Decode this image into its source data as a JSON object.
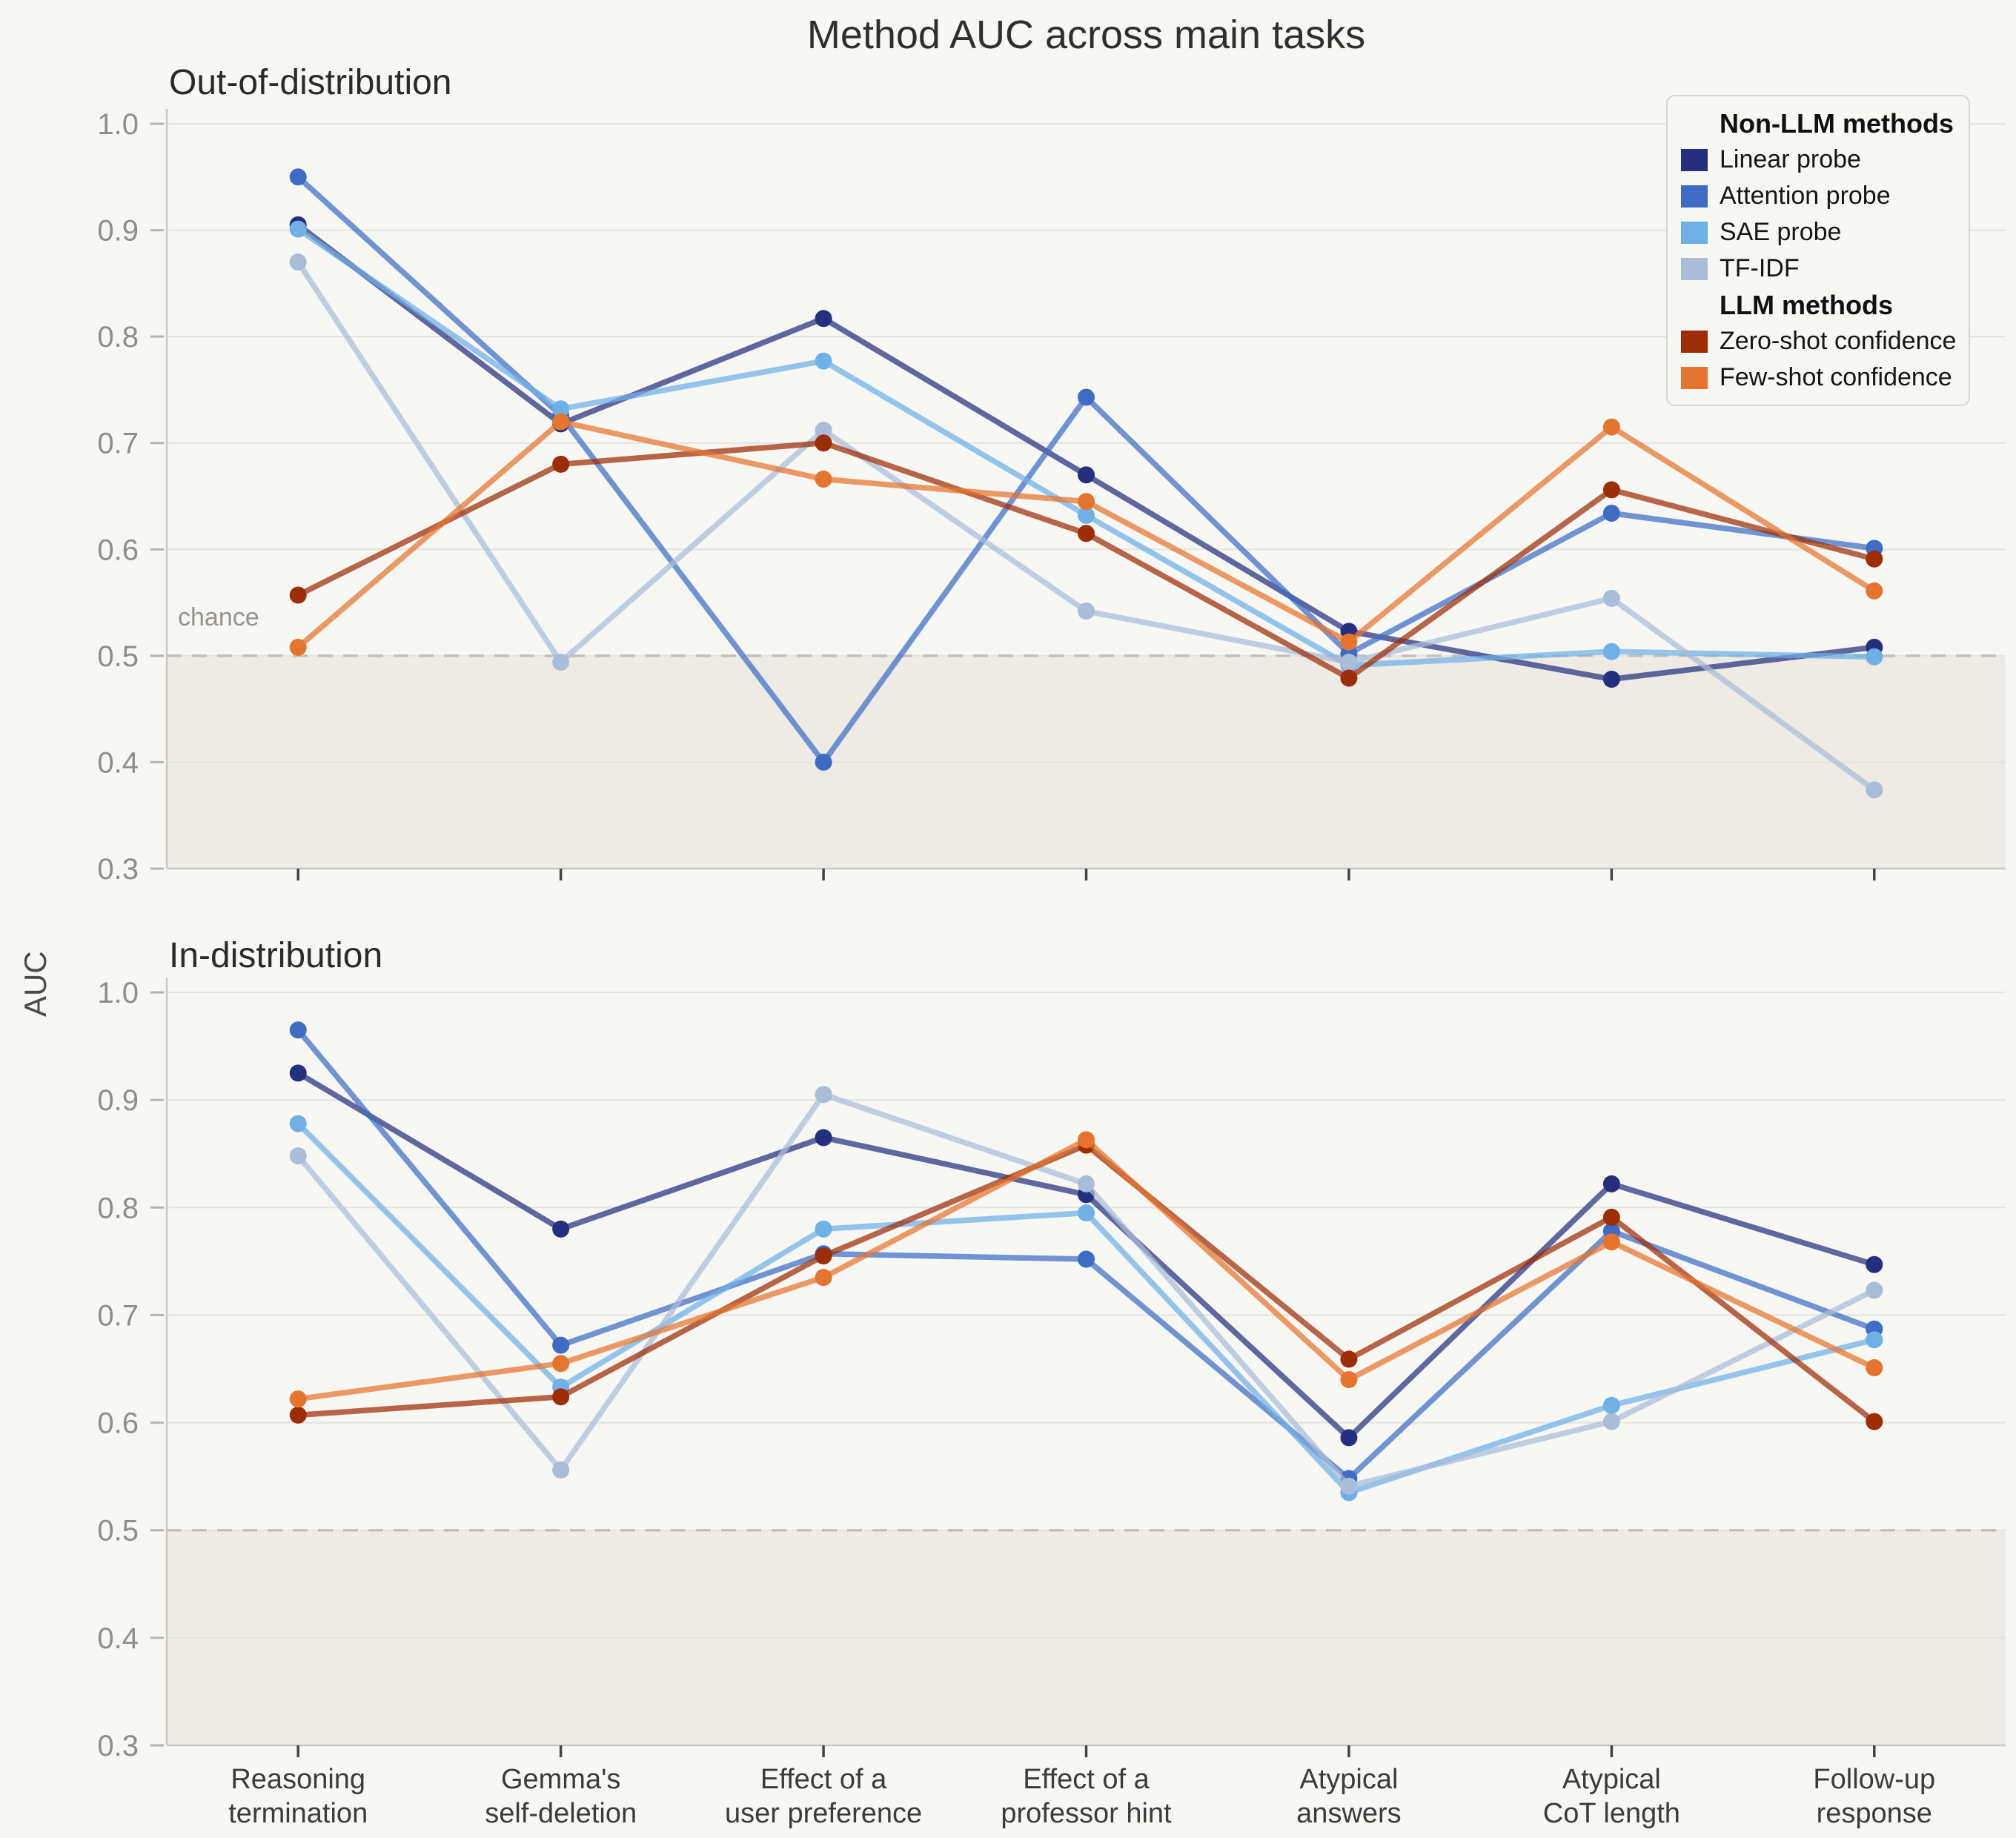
{
  "title": "Method AUC across main tasks",
  "y_axis_label": "AUC",
  "chance_label": "chance",
  "colors": {
    "background": "#f7f7f4",
    "below_chance_fill": "#edebe4",
    "chance_line": "#c6c1b7",
    "gridline": "#e5e4de",
    "spine": "#c9c9c3",
    "y_tick_text": "#8e8e8e",
    "x_tick_text": "#3c3c3c",
    "x_tick_mark": "#444444"
  },
  "legend": {
    "groups": [
      {
        "header": "Non-LLM methods",
        "items": [
          {
            "label": "Linear probe",
            "color": "#252f7d"
          },
          {
            "label": "Attention probe",
            "color": "#3e6cc5"
          },
          {
            "label": "SAE probe",
            "color": "#6fb0e6"
          },
          {
            "label": "TF-IDF",
            "color": "#a9bcd8"
          }
        ]
      },
      {
        "header": "LLM methods",
        "items": [
          {
            "label": "Zero-shot confidence",
            "color": "#9c2d07"
          },
          {
            "label": "Few-shot confidence",
            "color": "#e5742e"
          }
        ]
      }
    ]
  },
  "chart_data": [
    {
      "type": "line",
      "title": "Out-of-distribution",
      "ylabel": "AUC",
      "ylim": [
        0.3,
        1.0
      ],
      "yticks": [
        1.0,
        0.9,
        0.8,
        0.7,
        0.6,
        0.5,
        0.4,
        0.3
      ],
      "chance_line": 0.5,
      "grid": true,
      "categories": [
        "Reasoning\ntermination",
        "Gemma's\nself-deletion",
        "Effect of a\nuser preference",
        "Effect of a\nprofessor hint",
        "Atypical\nanswers",
        "Atypical\nCoT length",
        "Follow-up\nresponse"
      ],
      "series": [
        {
          "name": "Linear probe",
          "color": "#252f7d",
          "values": [
            0.905,
            0.718,
            0.817,
            0.67,
            0.523,
            0.478,
            0.508
          ]
        },
        {
          "name": "Attention probe",
          "color": "#3e6cc5",
          "values": [
            0.95,
            0.726,
            0.4,
            0.743,
            0.502,
            0.634,
            0.601
          ]
        },
        {
          "name": "SAE probe",
          "color": "#6fb0e6",
          "values": [
            0.901,
            0.732,
            0.777,
            0.632,
            0.491,
            0.504,
            0.499
          ]
        },
        {
          "name": "TF-IDF",
          "color": "#a9bcd8",
          "values": [
            0.87,
            0.494,
            0.712,
            0.542,
            0.494,
            0.554,
            0.374
          ]
        },
        {
          "name": "Zero-shot confidence",
          "color": "#9c2d07",
          "values": [
            0.557,
            0.68,
            0.7,
            0.615,
            0.479,
            0.656,
            0.591
          ]
        },
        {
          "name": "Few-shot confidence",
          "color": "#e5742e",
          "values": [
            0.508,
            0.72,
            0.666,
            0.645,
            0.513,
            0.715,
            0.561
          ]
        }
      ]
    },
    {
      "type": "line",
      "title": "In-distribution",
      "ylabel": "AUC",
      "ylim": [
        0.3,
        1.0
      ],
      "yticks": [
        1.0,
        0.9,
        0.8,
        0.7,
        0.6,
        0.5,
        0.4,
        0.3
      ],
      "chance_line": 0.5,
      "grid": true,
      "categories": [
        "Reasoning\ntermination",
        "Gemma's\nself-deletion",
        "Effect of a\nuser preference",
        "Effect of a\nprofessor hint",
        "Atypical\nanswers",
        "Atypical\nCoT length",
        "Follow-up\nresponse"
      ],
      "series": [
        {
          "name": "Linear probe",
          "color": "#252f7d",
          "values": [
            0.925,
            0.78,
            0.865,
            0.812,
            0.586,
            0.822,
            0.747
          ]
        },
        {
          "name": "Attention probe",
          "color": "#3e6cc5",
          "values": [
            0.965,
            0.672,
            0.757,
            0.752,
            0.548,
            0.778,
            0.687
          ]
        },
        {
          "name": "SAE probe",
          "color": "#6fb0e6",
          "values": [
            0.878,
            0.633,
            0.78,
            0.795,
            0.535,
            0.616,
            0.677
          ]
        },
        {
          "name": "TF-IDF",
          "color": "#a9bcd8",
          "values": [
            0.848,
            0.556,
            0.905,
            0.822,
            0.541,
            0.601,
            0.723
          ]
        },
        {
          "name": "Zero-shot confidence",
          "color": "#9c2d07",
          "values": [
            0.607,
            0.624,
            0.755,
            0.858,
            0.659,
            0.791,
            0.601
          ]
        },
        {
          "name": "Few-shot confidence",
          "color": "#e5742e",
          "values": [
            0.622,
            0.655,
            0.735,
            0.863,
            0.64,
            0.768,
            0.651
          ]
        }
      ]
    }
  ]
}
